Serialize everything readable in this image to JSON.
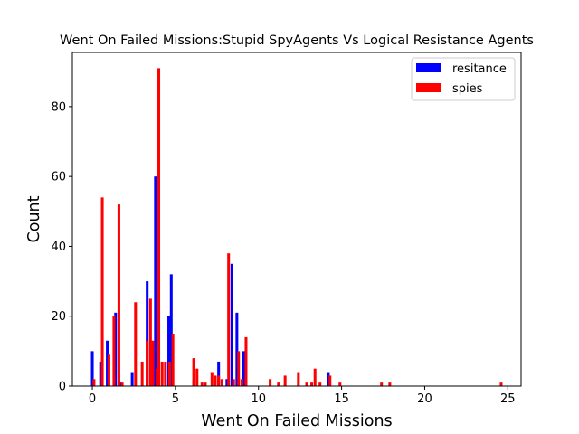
{
  "chart_data": {
    "type": "bar",
    "title": "Went On Failed Missions:Stupid SpyAgents Vs Logical Resistance Agents",
    "xlabel": "Went On Failed Missions",
    "ylabel": "Count",
    "xlim": [
      -1.2,
      25.8
    ],
    "ylim": [
      0,
      95.5
    ],
    "bar_width": 0.165,
    "xticks": [
      0,
      5,
      10,
      15,
      20,
      25
    ],
    "yticks": [
      0,
      20,
      40,
      60,
      80
    ],
    "legend": {
      "placement": "top-right"
    },
    "grid": false,
    "series": [
      {
        "name": "resitance",
        "color": "#0000ff",
        "points": [
          {
            "x": 0.0,
            "y": 10
          },
          {
            "x": 0.5,
            "y": 7
          },
          {
            "x": 0.9,
            "y": 13
          },
          {
            "x": 1.4,
            "y": 21
          },
          {
            "x": 1.7,
            "y": 1
          },
          {
            "x": 2.4,
            "y": 4
          },
          {
            "x": 3.3,
            "y": 30
          },
          {
            "x": 3.8,
            "y": 60
          },
          {
            "x": 4.6,
            "y": 20
          },
          {
            "x": 4.75,
            "y": 32
          },
          {
            "x": 6.1,
            "y": 2
          },
          {
            "x": 7.6,
            "y": 7
          },
          {
            "x": 8.1,
            "y": 2
          },
          {
            "x": 8.4,
            "y": 35
          },
          {
            "x": 8.7,
            "y": 21
          },
          {
            "x": 9.1,
            "y": 10
          },
          {
            "x": 14.2,
            "y": 4
          }
        ]
      },
      {
        "name": "spies",
        "color": "#ff0000",
        "points": [
          {
            "x": 0.1,
            "y": 2
          },
          {
            "x": 0.6,
            "y": 54
          },
          {
            "x": 1.0,
            "y": 9
          },
          {
            "x": 1.3,
            "y": 20
          },
          {
            "x": 1.6,
            "y": 52
          },
          {
            "x": 1.8,
            "y": 1
          },
          {
            "x": 2.6,
            "y": 24
          },
          {
            "x": 3.0,
            "y": 7
          },
          {
            "x": 3.3,
            "y": 13
          },
          {
            "x": 3.5,
            "y": 25
          },
          {
            "x": 3.65,
            "y": 13
          },
          {
            "x": 3.9,
            "y": 5
          },
          {
            "x": 4.0,
            "y": 91
          },
          {
            "x": 4.2,
            "y": 7
          },
          {
            "x": 4.4,
            "y": 7
          },
          {
            "x": 4.65,
            "y": 7
          },
          {
            "x": 4.85,
            "y": 15
          },
          {
            "x": 6.1,
            "y": 8
          },
          {
            "x": 6.3,
            "y": 5
          },
          {
            "x": 6.6,
            "y": 1
          },
          {
            "x": 6.8,
            "y": 1
          },
          {
            "x": 7.2,
            "y": 4
          },
          {
            "x": 7.4,
            "y": 3
          },
          {
            "x": 7.6,
            "y": 3
          },
          {
            "x": 7.8,
            "y": 2
          },
          {
            "x": 8.2,
            "y": 38
          },
          {
            "x": 8.5,
            "y": 2
          },
          {
            "x": 8.8,
            "y": 10
          },
          {
            "x": 9.0,
            "y": 2
          },
          {
            "x": 9.25,
            "y": 14
          },
          {
            "x": 10.7,
            "y": 2
          },
          {
            "x": 11.2,
            "y": 1
          },
          {
            "x": 11.6,
            "y": 3
          },
          {
            "x": 12.4,
            "y": 4
          },
          {
            "x": 12.9,
            "y": 1
          },
          {
            "x": 13.2,
            "y": 1
          },
          {
            "x": 13.4,
            "y": 5
          },
          {
            "x": 13.7,
            "y": 1
          },
          {
            "x": 14.3,
            "y": 3
          },
          {
            "x": 14.9,
            "y": 1
          },
          {
            "x": 17.4,
            "y": 1
          },
          {
            "x": 17.9,
            "y": 1
          },
          {
            "x": 24.6,
            "y": 1
          }
        ]
      }
    ]
  }
}
